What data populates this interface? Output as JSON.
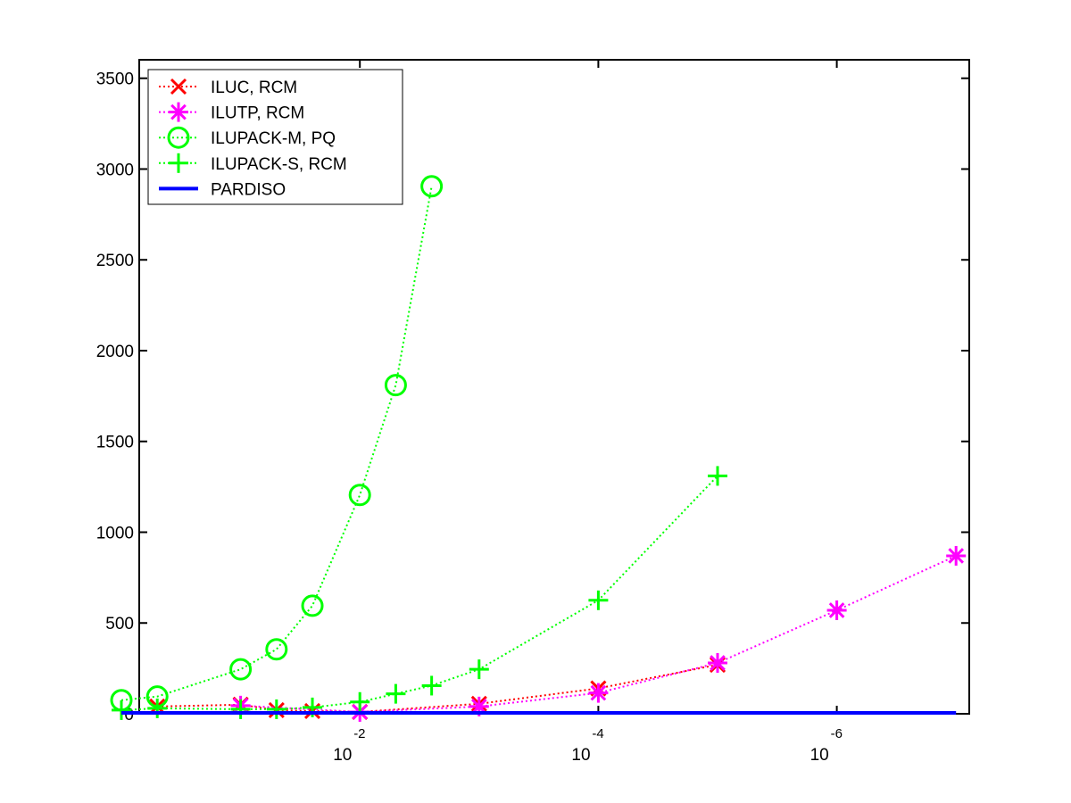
{
  "chart_data": {
    "type": "line",
    "x_scale": "log",
    "x_reversed": true,
    "xlim": [
      1,
      1e-07
    ],
    "ylim": [
      0,
      3600
    ],
    "grid": false,
    "legend_position": "top-left",
    "xticks": [
      {
        "value": 0.01,
        "base": "10",
        "exp": "-2"
      },
      {
        "value": 0.0001,
        "base": "10",
        "exp": "-4"
      },
      {
        "value": 1e-06,
        "base": "10",
        "exp": "-6"
      }
    ],
    "yticks": [
      0,
      500,
      1000,
      1500,
      2000,
      2500,
      3000,
      3500
    ],
    "series": [
      {
        "name": "ILUC, RCM",
        "color": "#ff0000",
        "marker": "x",
        "line": "dotted",
        "points": [
          [
            0.5,
            40
          ],
          [
            0.1,
            50
          ],
          [
            0.05,
            20
          ],
          [
            0.025,
            15
          ],
          [
            0.01,
            10
          ],
          [
            0.001,
            55
          ],
          [
            0.0001,
            140
          ],
          [
            1e-05,
            270
          ]
        ]
      },
      {
        "name": "ILUTP, RCM",
        "color": "#ff00ff",
        "marker": "asterisk",
        "line": "dotted",
        "points": [
          [
            0.1,
            45
          ],
          [
            0.01,
            10
          ],
          [
            0.001,
            40
          ],
          [
            0.0001,
            115
          ],
          [
            1e-05,
            280
          ],
          [
            1e-06,
            570
          ],
          [
            1e-07,
            870
          ]
        ]
      },
      {
        "name": "ILUPACK-M, PQ",
        "color": "#00ff00",
        "marker": "circle",
        "line": "dotted",
        "points": [
          [
            1,
            75
          ],
          [
            0.5,
            95
          ],
          [
            0.1,
            245
          ],
          [
            0.05,
            355
          ],
          [
            0.025,
            595
          ],
          [
            0.01,
            1205
          ],
          [
            0.005,
            1810
          ],
          [
            0.0025,
            2905
          ]
        ]
      },
      {
        "name": "ILUPACK-S, RCM",
        "color": "#00ff00",
        "marker": "plus",
        "line": "dotted",
        "points": [
          [
            1,
            20
          ],
          [
            0.5,
            30
          ],
          [
            0.1,
            25
          ],
          [
            0.05,
            25
          ],
          [
            0.025,
            35
          ],
          [
            0.01,
            65
          ],
          [
            0.005,
            110
          ],
          [
            0.0025,
            155
          ],
          [
            0.001,
            245
          ],
          [
            0.0001,
            625
          ],
          [
            1e-05,
            1310
          ]
        ]
      },
      {
        "name": "PARDISO",
        "color": "#0000ff",
        "marker": "none",
        "line": "solid",
        "points": [
          [
            1,
            5
          ],
          [
            1e-07,
            5
          ]
        ]
      }
    ]
  }
}
